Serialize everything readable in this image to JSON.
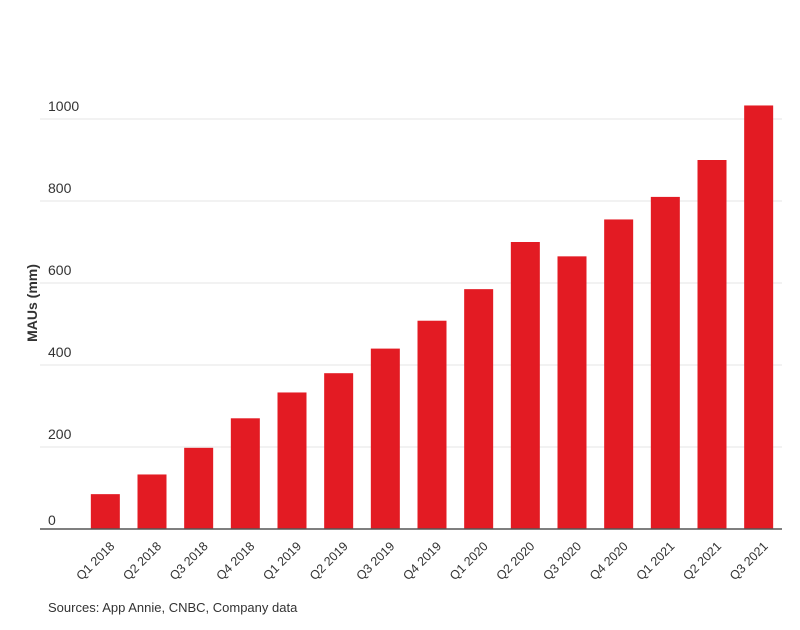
{
  "chart_data": {
    "type": "bar",
    "title": "",
    "xlabel": "",
    "ylabel": "MAUs (mm)",
    "ylim": [
      0,
      1050
    ],
    "yticks": [
      0,
      200,
      400,
      600,
      800,
      1000
    ],
    "grid": true,
    "categories": [
      "Q1 2018",
      "Q2 2018",
      "Q3 2018",
      "Q4 2018",
      "Q1 2019",
      "Q2 2019",
      "Q3 2019",
      "Q4 2019",
      "Q1 2020",
      "Q2 2020",
      "Q3 2020",
      "Q4 2020",
      "Q1 2021",
      "Q2 2021",
      "Q3 2021"
    ],
    "values": [
      85,
      133,
      198,
      270,
      333,
      380,
      440,
      508,
      585,
      700,
      665,
      755,
      810,
      900,
      1033
    ],
    "bar_color": "#e31b23"
  },
  "source_note": "Sources: App Annie, CNBC, Company data"
}
